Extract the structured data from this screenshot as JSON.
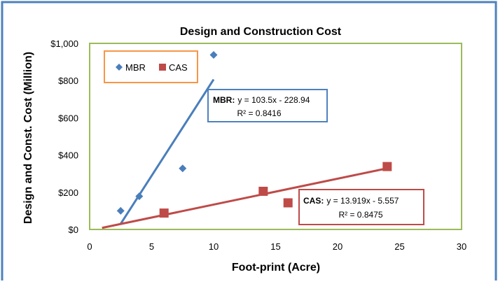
{
  "chart_data": {
    "type": "scatter",
    "title": "Design and Construction Cost",
    "xlabel": "Foot-print (Acre)",
    "ylabel": "Design and Const. Cost (Million)",
    "xlim": [
      0,
      30
    ],
    "ylim": [
      0,
      1000
    ],
    "x_ticks": [
      "0",
      "5",
      "10",
      "15",
      "20",
      "25",
      "30"
    ],
    "y_ticks": [
      "$0",
      "$200",
      "$400",
      "$600",
      "$800",
      "$1,000"
    ],
    "grid": false,
    "legend_position": "top-left",
    "series": [
      {
        "name": "MBR",
        "marker": "diamond",
        "color": "#4a7ebb",
        "points": [
          [
            2.5,
            100
          ],
          [
            4,
            178
          ],
          [
            7.5,
            328
          ],
          [
            10,
            938
          ]
        ],
        "trendline": {
          "x_range": [
            2.5,
            10
          ],
          "slope": 103.5,
          "intercept": -228.94
        }
      },
      {
        "name": "CAS",
        "marker": "square",
        "color": "#be4b48",
        "points": [
          [
            6,
            88
          ],
          [
            14,
            205
          ],
          [
            16,
            143
          ],
          [
            24,
            338
          ]
        ],
        "trendline": {
          "x_range": [
            1,
            24
          ],
          "slope": 13.919,
          "intercept": -5.557
        }
      }
    ],
    "annotations": [
      {
        "series": "MBR",
        "label": "MBR:",
        "equation": "y = 103.5x - 228.94",
        "r2": "R² = 0.8416"
      },
      {
        "series": "CAS",
        "label": "CAS:",
        "equation": "y = 13.919x - 5.557",
        "r2": "R² = 0.8475"
      }
    ]
  },
  "colors": {
    "chart_border": "#4f81bd",
    "plot_border": "#9bbb59",
    "legend_border": "#f79646",
    "mbr": "#4a7ebb",
    "cas": "#be4b48"
  }
}
